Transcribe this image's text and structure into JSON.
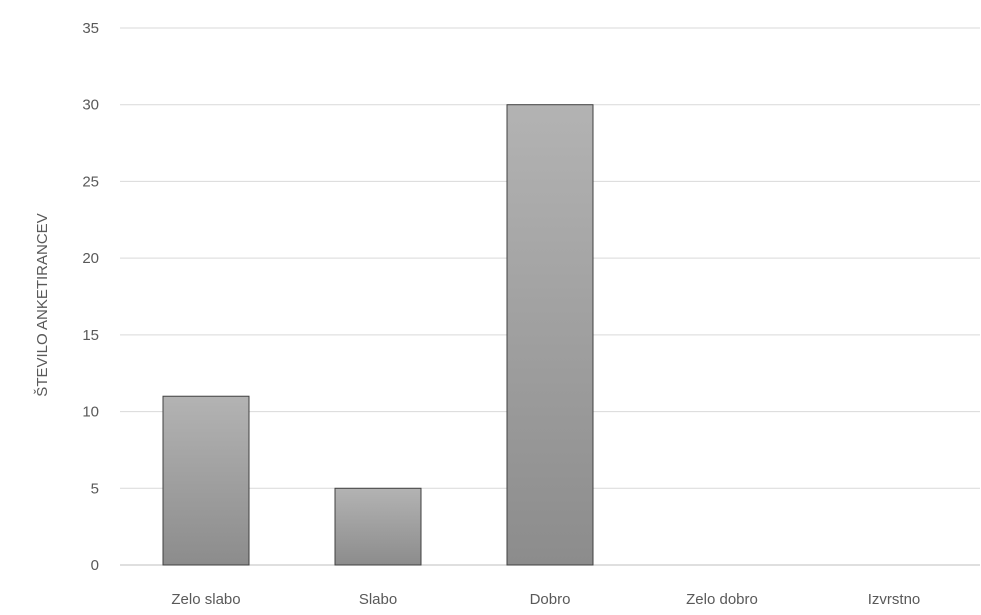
{
  "chart_data": {
    "type": "bar",
    "categories": [
      "Zelo slabo",
      "Slabo",
      "Dobro",
      "Zelo dobro",
      "Izvrstno"
    ],
    "values": [
      11,
      5,
      30,
      0,
      0
    ],
    "title": "",
    "xlabel": "",
    "ylabel": "ŠTEVILO ANKETIRANCEV",
    "ylim": [
      0,
      35
    ],
    "yticks": [
      0,
      5,
      10,
      15,
      20,
      25,
      30,
      35
    ],
    "grid": true,
    "legend": "none",
    "bar_color_light": "#b3b3b3",
    "bar_color_dark": "#8c8c8c",
    "bar_border_color": "#404040",
    "gridline_color": "#d9d9d9",
    "text_color": "#595959"
  }
}
